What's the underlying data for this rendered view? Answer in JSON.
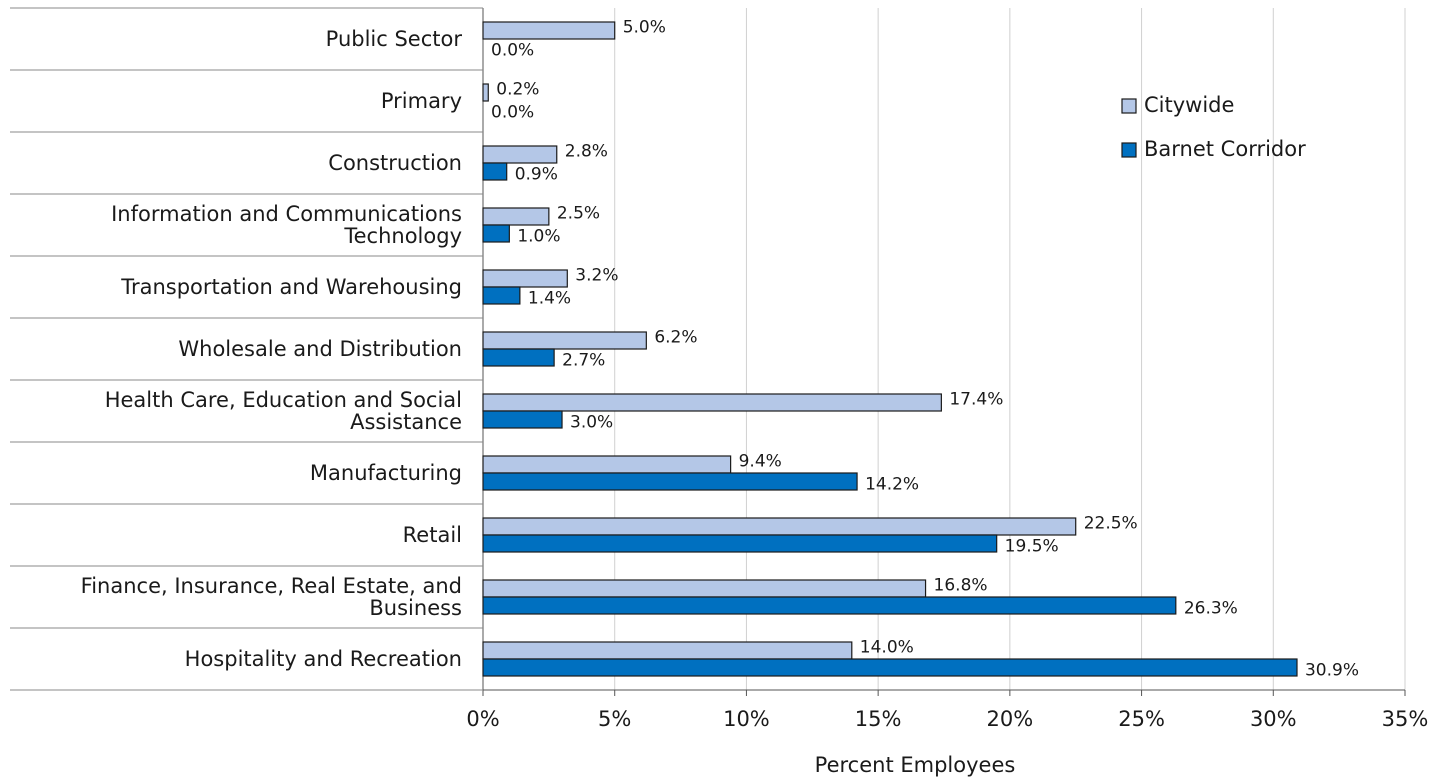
{
  "chart_data": {
    "type": "hbar",
    "xlabel": "Percent Employees",
    "categories": [
      "Public Sector",
      "Primary",
      "Construction",
      "Information and Communications Technology",
      "Transportation and Warehousing",
      "Wholesale and Distribution",
      "Health Care, Education and Social Assistance",
      "Manufacturing",
      "Retail",
      "Finance, Insurance, Real Estate, and Business",
      "Hospitality and Recreation"
    ],
    "series": [
      {
        "name": "Citywide",
        "color": "#b4c7e7",
        "values": [
          5.0,
          0.2,
          2.8,
          2.5,
          3.2,
          6.2,
          17.4,
          9.4,
          22.5,
          16.8,
          14.0
        ],
        "value_labels": [
          "5.0%",
          "0.2%",
          "2.8%",
          "2.5%",
          "3.2%",
          "6.2%",
          "17.4%",
          "9.4%",
          "22.5%",
          "16.8%",
          "14.0%"
        ]
      },
      {
        "name": "Barnet Corridor",
        "color": "#0070c0",
        "values": [
          0.0,
          0.0,
          0.9,
          1.0,
          1.4,
          2.7,
          3.0,
          14.2,
          19.5,
          26.3,
          30.9
        ],
        "value_labels": [
          "0.0%",
          "0.0%",
          "0.9%",
          "1.0%",
          "1.4%",
          "2.7%",
          "3.0%",
          "14.2%",
          "19.5%",
          "26.3%",
          "30.9%"
        ]
      }
    ],
    "xlim": [
      0,
      35
    ],
    "xticks": [
      {
        "value": 0,
        "label": "0%"
      },
      {
        "value": 5,
        "label": "5%"
      },
      {
        "value": 10,
        "label": "10%"
      },
      {
        "value": 15,
        "label": "15%"
      },
      {
        "value": 20,
        "label": "20%"
      },
      {
        "value": 25,
        "label": "25%"
      },
      {
        "value": 30,
        "label": "30%"
      },
      {
        "value": 35,
        "label": "35%"
      }
    ],
    "grid": true,
    "legend": "upper right"
  }
}
